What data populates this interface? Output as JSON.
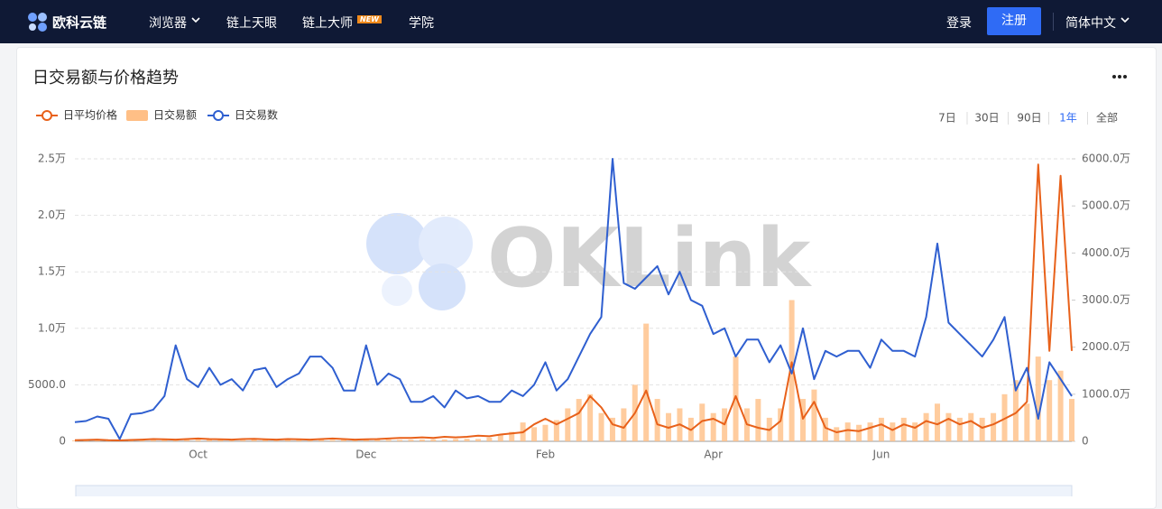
{
  "nav": {
    "brand": "欧科云链",
    "items": [
      "浏览器",
      "链上天眼",
      "链上大师",
      "学院"
    ],
    "badge": "NEW",
    "login": "登录",
    "register": "注册",
    "language": "简体中文"
  },
  "watermark": "OKLink",
  "ranges": [
    "7日",
    "30日",
    "90日",
    "1年",
    "全部"
  ],
  "active_range": 3,
  "chart_data": {
    "type": "combo",
    "title": "日交易额与价格趋势",
    "categories": [
      null,
      null,
      null,
      null,
      null,
      null,
      null,
      null,
      null,
      null,
      null,
      "Oct",
      null,
      null,
      null,
      null,
      null,
      null,
      null,
      null,
      null,
      null,
      null,
      null,
      null,
      null,
      "Dec",
      null,
      null,
      null,
      null,
      null,
      null,
      null,
      null,
      null,
      null,
      null,
      null,
      null,
      null,
      null,
      "Feb",
      null,
      null,
      null,
      null,
      null,
      null,
      null,
      null,
      null,
      null,
      null,
      null,
      null,
      null,
      "Apr",
      null,
      null,
      null,
      null,
      null,
      null,
      null,
      null,
      null,
      null,
      null,
      null,
      null,
      null,
      "Jun",
      null,
      null,
      null,
      null,
      null,
      null,
      null,
      null,
      null,
      null,
      null,
      null,
      null,
      null,
      null,
      null,
      null
    ],
    "series": [
      {
        "name": "日平均价格",
        "type": "line",
        "color": "#e8611a",
        "axis": "y",
        "values": [
          100,
          120,
          150,
          100,
          80,
          120,
          150,
          200,
          180,
          150,
          200,
          250,
          200,
          180,
          150,
          200,
          220,
          180,
          150,
          200,
          180,
          150,
          200,
          250,
          200,
          150,
          180,
          200,
          250,
          300,
          300,
          350,
          300,
          400,
          350,
          400,
          500,
          450,
          600,
          700,
          800,
          1500,
          2000,
          1500,
          2000,
          2500,
          4000,
          3000,
          1500,
          1200,
          2500,
          4500,
          1500,
          1200,
          1500,
          1000,
          1800,
          2000,
          1500,
          4000,
          1500,
          1200,
          1000,
          1800,
          7000,
          2000,
          3500,
          1200,
          800,
          1000,
          900,
          1200,
          1500,
          1000,
          1500,
          1200,
          1800,
          1500,
          2000,
          1500,
          1800,
          1200,
          1500,
          2000,
          2500,
          3500,
          24500,
          8000,
          23500,
          8000
        ]
      },
      {
        "name": "日交易额",
        "type": "bar",
        "color": "#ffbf86",
        "axis": "y2",
        "values": [
          20,
          25,
          30,
          20,
          10,
          25,
          30,
          25,
          40,
          50,
          30,
          35,
          40,
          30,
          30,
          25,
          35,
          40,
          30,
          35,
          40,
          45,
          40,
          30,
          30,
          45,
          35,
          40,
          35,
          30,
          35,
          40,
          45,
          40,
          50,
          55,
          50,
          80,
          150,
          200,
          400,
          300,
          350,
          450,
          700,
          900,
          1000,
          600,
          500,
          700,
          1200,
          2500,
          900,
          600,
          700,
          500,
          800,
          600,
          700,
          1800,
          700,
          900,
          500,
          700,
          3000,
          900,
          1100,
          500,
          300,
          400,
          350,
          400,
          500,
          400,
          500,
          400,
          600,
          800,
          600,
          500,
          600,
          500,
          600,
          1000,
          1300,
          800,
          1800,
          1300,
          1500,
          900
        ]
      },
      {
        "name": "日交易数",
        "type": "line",
        "color": "#2f5fd0",
        "axis": "y",
        "values": [
          1700,
          1800,
          2200,
          2000,
          200,
          2400,
          2500,
          2800,
          4000,
          8500,
          5500,
          4800,
          6500,
          5000,
          5500,
          4500,
          6300,
          6500,
          4800,
          5500,
          6000,
          7500,
          7500,
          6500,
          4500,
          4500,
          8500,
          5000,
          6000,
          5500,
          3500,
          3500,
          4000,
          3000,
          4500,
          3800,
          4000,
          3500,
          3500,
          4500,
          4000,
          5000,
          7000,
          4500,
          5500,
          7500,
          9500,
          11000,
          25000,
          14000,
          13500,
          14500,
          15500,
          13000,
          15000,
          12500,
          12000,
          9500,
          10000,
          7500,
          9000,
          9000,
          7000,
          8500,
          6000,
          10000,
          5500,
          8000,
          7500,
          8000,
          8000,
          6500,
          9000,
          8000,
          8000,
          7500,
          11000,
          17500,
          10500,
          9500,
          8500,
          7500,
          9000,
          11000,
          4500,
          6500,
          2000,
          7000,
          5500,
          4000
        ]
      }
    ],
    "ylim": [
      0,
      25000
    ],
    "yticks": [
      0,
      {
        "value": 5000,
        "label": "5000.0"
      },
      {
        "value": 10000,
        "label": "1.0万"
      },
      {
        "value": 15000,
        "label": "1.5万"
      },
      {
        "value": 20000,
        "label": "2.0万"
      },
      {
        "value": 25000,
        "label": "2.5万"
      }
    ],
    "y2lim": [
      0,
      6000
    ],
    "y2ticks": [
      0,
      {
        "value": 1000,
        "label": "1000.0万"
      },
      {
        "value": 2000,
        "label": "2000.0万"
      },
      {
        "value": 3000,
        "label": "3000.0万"
      },
      {
        "value": 4000,
        "label": "4000.0万"
      },
      {
        "value": 5000,
        "label": "5000.0万"
      },
      {
        "value": 6000,
        "label": "6000.0万"
      }
    ],
    "grid": true
  }
}
